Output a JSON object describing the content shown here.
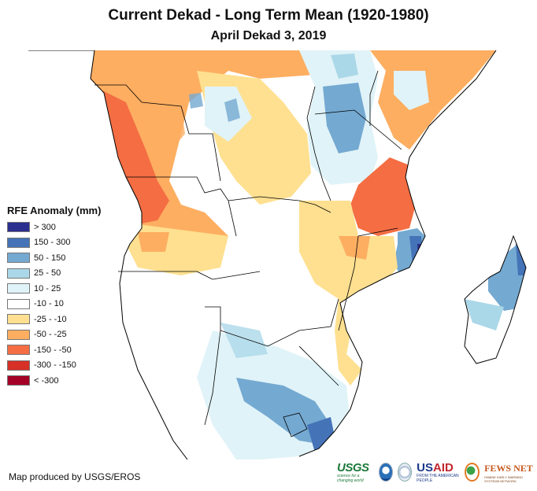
{
  "title": "Current Dekad - Long Term Mean (1920-1980)",
  "subtitle": "April Dekad 3, 2019",
  "legend": {
    "title": "RFE Anomaly (mm)",
    "items": [
      {
        "label": "> 300",
        "color": "#2b2f8f"
      },
      {
        "label": "150 - 300",
        "color": "#4473b8"
      },
      {
        "label": "50 - 150",
        "color": "#74a9d1"
      },
      {
        "label": "25 - 50",
        "color": "#abd8e8"
      },
      {
        "label": "10 - 25",
        "color": "#e0f3f8"
      },
      {
        "label": "-10 - 10",
        "color": "#ffffff"
      },
      {
        "label": "-25 - -10",
        "color": "#fee090"
      },
      {
        "label": "-50 - -25",
        "color": "#fdae61"
      },
      {
        "label": "-150 - -50",
        "color": "#f46d43"
      },
      {
        "label": "-300 - -150",
        "color": "#d73027"
      },
      {
        "label": "< -300",
        "color": "#a50026"
      }
    ]
  },
  "credit": "Map produced by USGS/EROS",
  "logos": {
    "usgs": "USGS",
    "usgs_tagline": "science for a changing world",
    "usaid_us": "US",
    "usaid_aid": "AID",
    "usaid_tagline": "FROM THE AMERICAN PEOPLE",
    "fews": "FEWS NET",
    "fews_tagline": "FAMINE EARLY WARNING SYSTEMS NETWORK"
  }
}
